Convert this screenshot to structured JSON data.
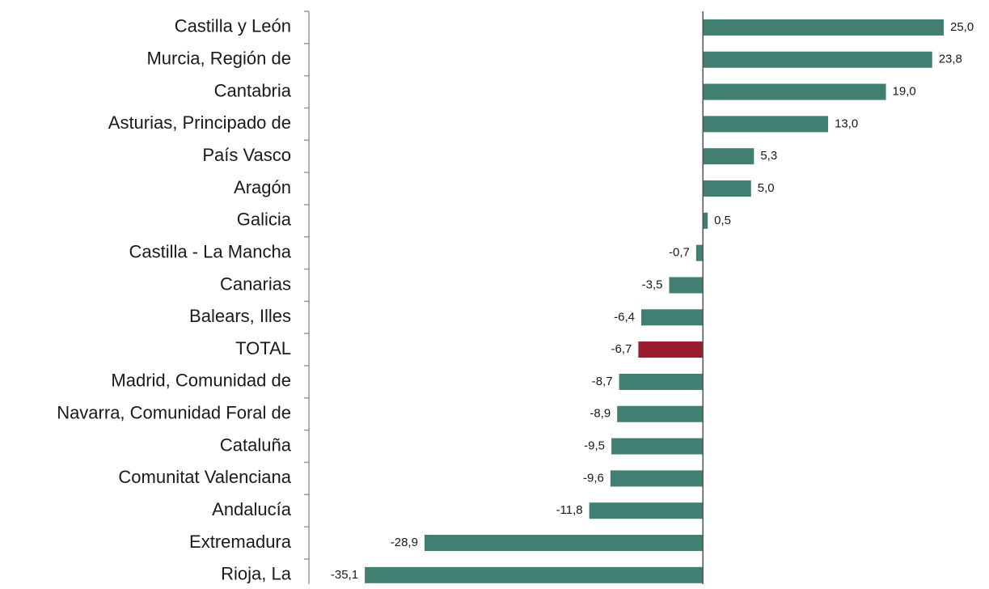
{
  "chart_data": {
    "type": "barh",
    "categories": [
      "Castilla y León",
      "Murcia, Región de",
      "Cantabria",
      "Asturias, Principado de",
      "País Vasco",
      "Aragón",
      "Galicia",
      "Castilla - La Mancha",
      "Canarias",
      "Balears, Illes",
      "TOTAL",
      "Madrid, Comunidad de",
      "Navarra, Comunidad Foral de",
      "Cataluña",
      "Comunitat Valenciana",
      "Andalucía",
      "Extremadura",
      "Rioja, La"
    ],
    "values": [
      25.0,
      23.8,
      19.0,
      13.0,
      5.3,
      5.0,
      0.5,
      -0.7,
      -3.5,
      -6.4,
      -6.7,
      -8.7,
      -8.9,
      -9.5,
      -9.6,
      -11.8,
      -28.9,
      -35.1
    ],
    "value_labels": [
      "25,0",
      "23,8",
      "19,0",
      "13,0",
      "5,3",
      "5,0",
      "0,5",
      "-0,7",
      "-3,5",
      "-6,4",
      "-6,7",
      "-8,7",
      "-8,9",
      "-9,5",
      "-9,6",
      "-11,8",
      "-28,9",
      "-35,1"
    ],
    "colors": [
      "#417f72",
      "#417f72",
      "#417f72",
      "#417f72",
      "#417f72",
      "#417f72",
      "#417f72",
      "#417f72",
      "#417f72",
      "#417f72",
      "#9a1a30",
      "#417f72",
      "#417f72",
      "#417f72",
      "#417f72",
      "#417f72",
      "#417f72",
      "#417f72"
    ],
    "xlim": [
      -40.9,
      29.7
    ]
  }
}
